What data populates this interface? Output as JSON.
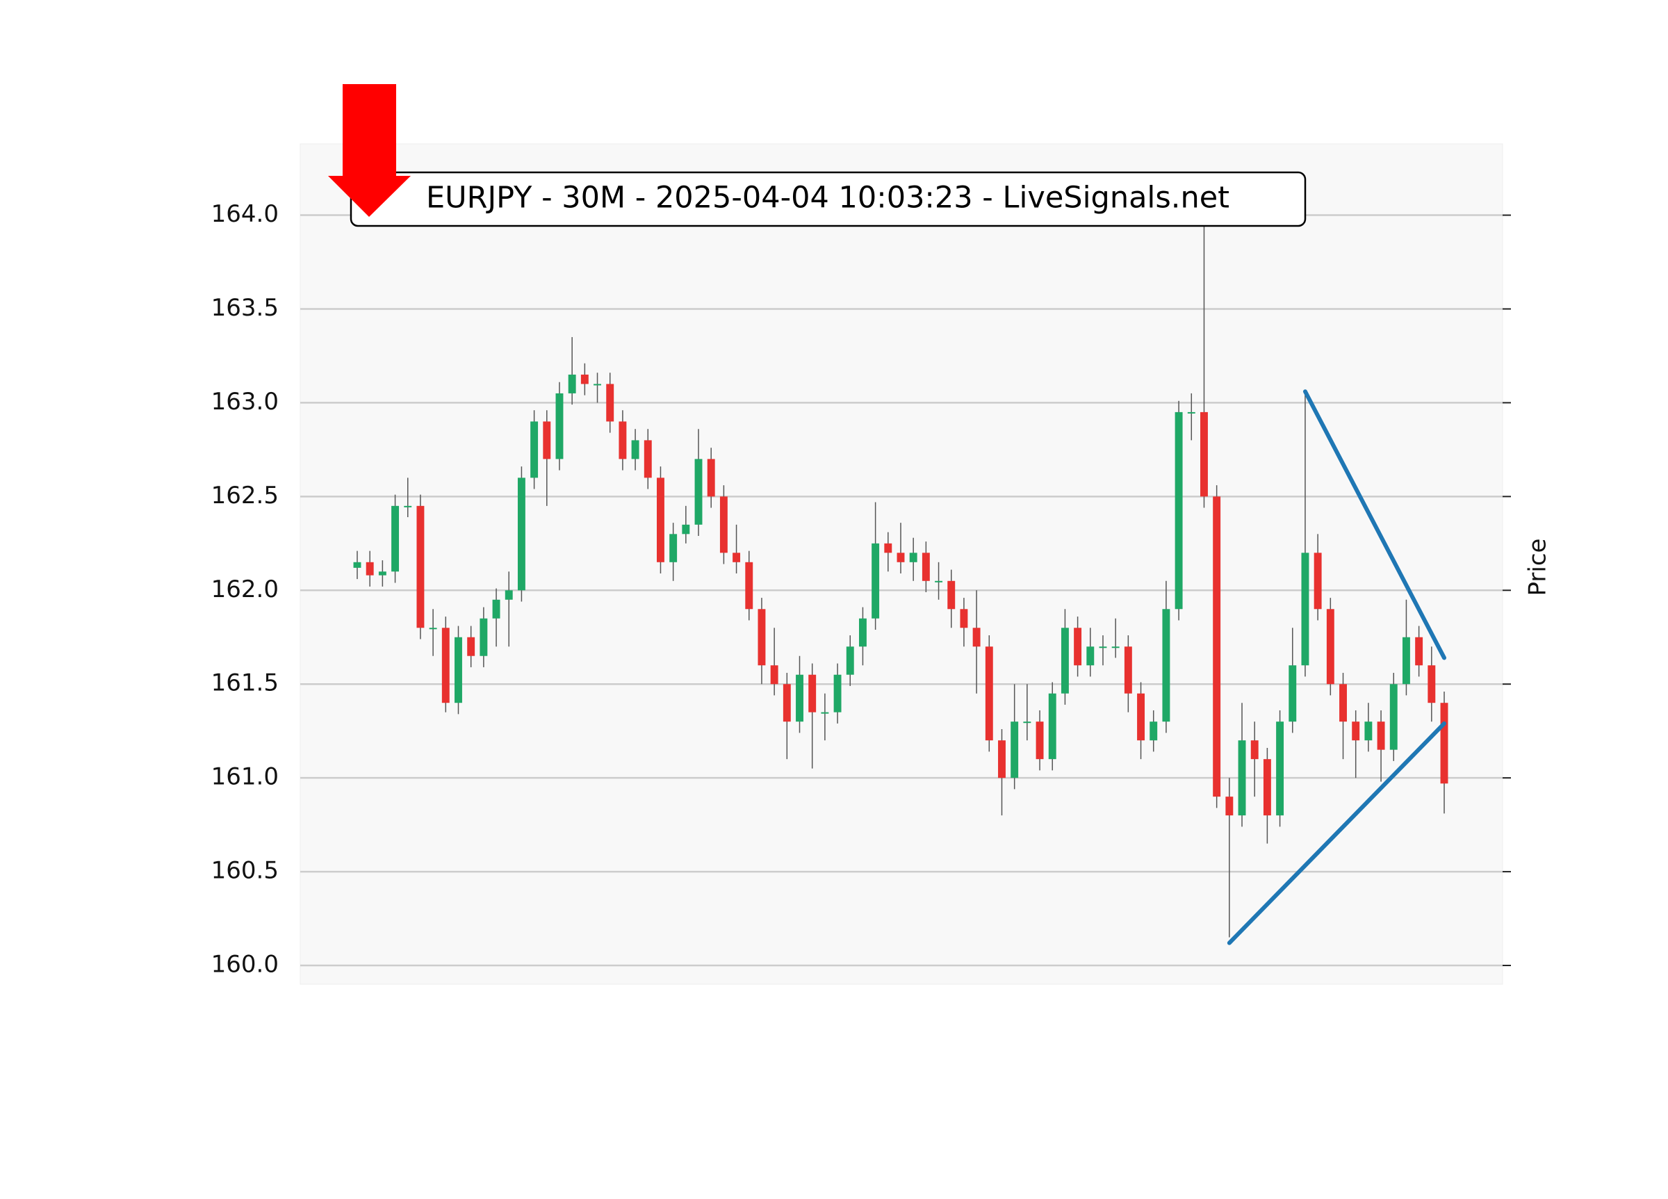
{
  "chart_data": {
    "type": "candlestick",
    "title": "EURJPY - 30M - 2025-04-04 10:03:23 - LiveSignals.net",
    "y_label": "Price",
    "ylim": [
      159.9,
      164.38
    ],
    "yticks": [
      {
        "value": 160,
        "label": "160.0"
      },
      160.5,
      {
        "value": 161,
        "label": "161.0"
      },
      161.5,
      {
        "value": 162,
        "label": "162.0"
      },
      162.5,
      {
        "value": 163,
        "label": "163.0"
      },
      163.5,
      {
        "value": 164,
        "label": "164.0"
      }
    ],
    "grid": true,
    "up_color": "#1fa866",
    "down_color": "#e8312f",
    "wick_color": "#555555",
    "open": [
      162.12,
      162.15,
      162.08,
      162.1,
      162.45,
      162.45,
      161.8,
      161.8,
      161.4,
      161.75,
      161.65,
      161.85,
      161.95,
      162.0,
      162.6,
      162.9,
      162.7,
      163.05,
      163.15,
      163.1,
      163.1,
      162.9,
      162.7,
      162.8,
      162.6,
      162.15,
      162.3,
      162.35,
      162.7,
      162.5,
      162.2,
      162.15,
      161.9,
      161.6,
      161.5,
      161.3,
      161.55,
      161.35,
      161.35,
      161.55,
      161.7,
      161.85,
      162.25,
      162.2,
      162.15,
      162.2,
      162.05,
      162.05,
      161.9,
      161.8,
      161.7,
      161.2,
      161.0,
      161.3,
      161.3,
      161.1,
      161.45,
      161.8,
      161.6,
      161.7,
      161.7,
      161.7,
      161.45,
      161.2,
      161.3,
      161.9,
      162.95,
      162.95,
      162.5,
      160.9,
      160.8,
      161.2,
      161.1,
      160.8,
      161.3,
      161.6,
      162.2,
      161.9,
      161.5,
      161.3,
      161.2,
      161.3,
      161.15,
      161.5,
      161.75,
      161.6,
      161.4
    ],
    "high": [
      162.21,
      162.21,
      162.16,
      162.51,
      162.6,
      162.51,
      161.9,
      161.86,
      161.81,
      161.81,
      161.91,
      162.01,
      162.1,
      162.66,
      162.96,
      162.96,
      163.11,
      163.35,
      163.21,
      163.16,
      163.16,
      162.96,
      162.86,
      162.86,
      162.66,
      162.36,
      162.45,
      162.86,
      162.76,
      162.56,
      162.35,
      162.21,
      161.96,
      161.8,
      161.56,
      161.65,
      161.61,
      161.45,
      161.61,
      161.76,
      161.91,
      162.47,
      162.31,
      162.36,
      162.28,
      162.26,
      162.15,
      162.11,
      161.96,
      162.0,
      161.76,
      161.26,
      161.5,
      161.5,
      161.36,
      161.51,
      161.9,
      161.86,
      161.8,
      161.76,
      161.85,
      161.76,
      161.51,
      161.36,
      162.05,
      163.01,
      163.05,
      163.95,
      162.56,
      161.0,
      161.4,
      161.3,
      161.16,
      161.36,
      161.8,
      163.06,
      162.3,
      161.96,
      161.56,
      161.36,
      161.4,
      161.36,
      161.56,
      161.95,
      161.81,
      161.7,
      161.46
    ],
    "low": [
      162.06,
      162.02,
      162.02,
      162.04,
      162.39,
      161.74,
      161.65,
      161.35,
      161.34,
      161.59,
      161.59,
      161.7,
      161.7,
      161.94,
      162.54,
      162.45,
      162.64,
      162.99,
      163.04,
      163.0,
      162.84,
      162.64,
      162.64,
      162.54,
      162.09,
      162.05,
      162.25,
      162.29,
      162.44,
      162.14,
      162.09,
      161.84,
      161.5,
      161.44,
      161.1,
      161.24,
      161.05,
      161.2,
      161.29,
      161.49,
      161.6,
      161.79,
      162.1,
      162.09,
      162.05,
      161.99,
      161.95,
      161.8,
      161.7,
      161.45,
      161.14,
      160.8,
      160.94,
      161.2,
      161.04,
      161.04,
      161.39,
      161.54,
      161.54,
      161.6,
      161.64,
      161.35,
      161.1,
      161.14,
      161.24,
      161.84,
      162.8,
      162.44,
      160.84,
      160.15,
      160.74,
      160.9,
      160.65,
      160.74,
      161.24,
      161.54,
      161.84,
      161.44,
      161.1,
      161.0,
      161.14,
      160.98,
      161.09,
      161.44,
      161.54,
      161.3,
      160.81
    ],
    "close": [
      162.15,
      162.08,
      162.1,
      162.45,
      162.45,
      161.8,
      161.8,
      161.4,
      161.75,
      161.65,
      161.85,
      161.95,
      162.0,
      162.6,
      162.9,
      162.7,
      163.05,
      163.15,
      163.1,
      163.1,
      162.9,
      162.7,
      162.8,
      162.6,
      162.15,
      162.3,
      162.35,
      162.7,
      162.5,
      162.2,
      162.15,
      161.9,
      161.6,
      161.5,
      161.3,
      161.55,
      161.35,
      161.35,
      161.55,
      161.7,
      161.85,
      162.25,
      162.2,
      162.15,
      162.2,
      162.05,
      162.05,
      161.9,
      161.8,
      161.7,
      161.2,
      161.0,
      161.3,
      161.3,
      161.1,
      161.45,
      161.8,
      161.6,
      161.7,
      161.7,
      161.7,
      161.45,
      161.2,
      161.3,
      161.9,
      162.95,
      162.95,
      162.5,
      160.9,
      160.8,
      161.2,
      161.1,
      160.8,
      161.3,
      161.6,
      162.2,
      161.9,
      161.5,
      161.3,
      161.2,
      161.3,
      161.15,
      161.5,
      161.75,
      161.6,
      161.4,
      160.97
    ],
    "trendline_color": "#1f77b4",
    "trendlines": [
      {
        "x": [
          75,
          86
        ],
        "y": [
          163.06,
          161.64
        ]
      },
      {
        "x": [
          69,
          86
        ],
        "y": [
          160.12,
          161.29
        ]
      }
    ],
    "signal_arrow_color": "#ff0000"
  }
}
